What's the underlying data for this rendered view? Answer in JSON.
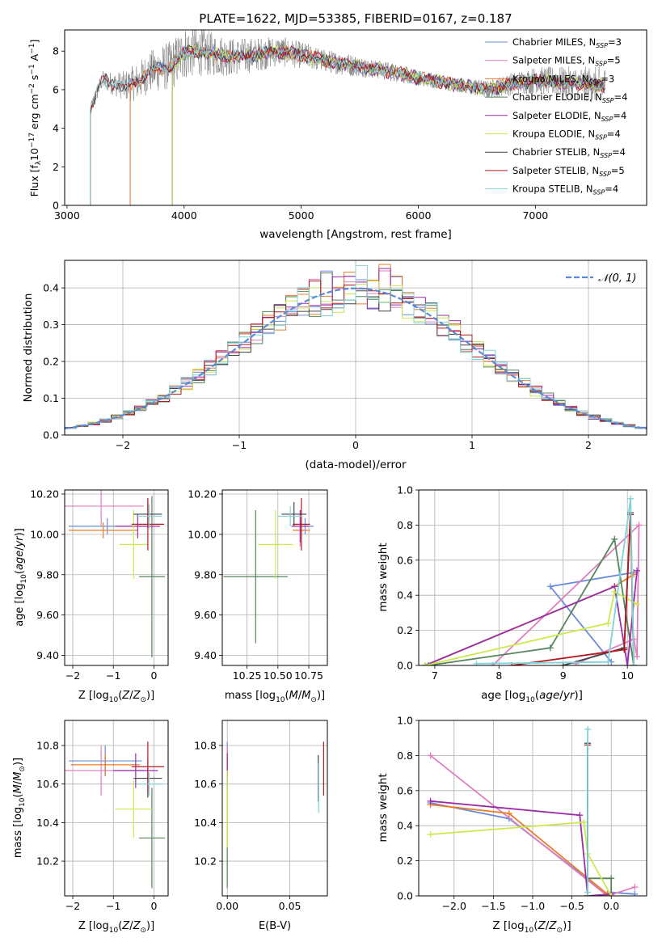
{
  "figure": {
    "title": "PLATE=1622, MJD=53385, FIBERID=0167, z=0.187",
    "colors": {
      "chabrier_miles": "#6a8bd9",
      "salpeter_miles": "#e07fbf",
      "kroupa_miles": "#e97d2c",
      "chabrier_elodie": "#55855a",
      "salpeter_elodie": "#9b2fa8",
      "kroupa_elodie": "#cce84f",
      "chabrier_stelib": "#444444",
      "salpeter_stelib": "#b3181f",
      "kroupa_stelib": "#7fd3d9",
      "data_spectrum": "#7a7a7a",
      "gauss": "#5b8ad6"
    }
  },
  "chart_data": [
    {
      "id": "spectrum",
      "type": "line",
      "xlabel": "wavelength [Angstrom, rest frame]",
      "ylabel": "Flux [f_λ 10^-17 erg cm^-2 s^-1 A^-1]",
      "xlim": [
        2980,
        7950
      ],
      "ylim": [
        0,
        9.1
      ],
      "xticks": [
        3000,
        4000,
        5000,
        6000,
        7000
      ],
      "yticks": [
        0,
        2,
        4,
        6,
        8
      ],
      "grid": false,
      "legend_placement": "right",
      "legend": [
        {
          "key": "chabrier_miles",
          "name": "Chabrier MILES, N",
          "sub": "SSP",
          "tail": "=3"
        },
        {
          "key": "salpeter_miles",
          "name": "Salpeter MILES, N",
          "sub": "SSP",
          "tail": "=5"
        },
        {
          "key": "kroupa_miles",
          "name": "Kroupa MILES, N",
          "sub": "SSP",
          "tail": "=3"
        },
        {
          "key": "chabrier_elodie",
          "name": "Chabrier ELODIE, N",
          "sub": "SSP",
          "tail": "=4"
        },
        {
          "key": "salpeter_elodie",
          "name": "Salpeter ELODIE, N",
          "sub": "SSP",
          "tail": "=4"
        },
        {
          "key": "kroupa_elodie",
          "name": "Kroupa ELODIE, N",
          "sub": "SSP",
          "tail": "=4"
        },
        {
          "key": "chabrier_stelib",
          "name": "Chabrier STELIB, N",
          "sub": "SSP",
          "tail": "=4"
        },
        {
          "key": "salpeter_stelib",
          "name": "Salpeter STELIB, N",
          "sub": "SSP",
          "tail": "=5"
        },
        {
          "key": "kroupa_stelib",
          "name": "Kroupa STELIB, N",
          "sub": "SSP",
          "tail": "=4"
        }
      ],
      "data_envelope": {
        "x": [
          3200,
          3300,
          3400,
          3500,
          3600,
          3700,
          3800,
          3900,
          4000,
          4100,
          4200,
          4400,
          4600,
          4800,
          5000,
          5200,
          5400,
          5600,
          5800,
          6000,
          6200,
          6400,
          6600,
          6800,
          7000,
          7200,
          7400,
          7600
        ],
        "y": [
          5.0,
          6.5,
          6.3,
          6.2,
          6.4,
          6.9,
          7.1,
          7.3,
          7.9,
          8.0,
          7.9,
          7.7,
          7.8,
          8.0,
          7.8,
          7.5,
          7.3,
          7.1,
          6.9,
          6.6,
          6.4,
          6.2,
          6.0,
          6.3,
          6.5,
          6.4,
          6.3,
          6.2
        ],
        "noise": [
          0.3,
          0.5,
          0.6,
          0.8,
          1.0,
          1.1,
          1.2,
          1.3,
          1.4,
          1.3,
          1.2,
          1.0,
          0.9,
          0.8,
          0.7,
          0.6,
          0.6,
          0.5,
          0.5,
          0.4,
          0.4,
          0.4,
          0.5,
          0.6,
          0.7,
          0.8,
          0.9,
          1.0
        ]
      },
      "model_start": {
        "chabrier_miles": 3540,
        "salpeter_miles": 3540,
        "kroupa_miles": 3540,
        "chabrier_elodie": 3900,
        "salpeter_elodie": 3900,
        "kroupa_elodie": 3900,
        "chabrier_stelib": 3200,
        "salpeter_stelib": 3200,
        "kroupa_stelib": 3200
      }
    },
    {
      "id": "residuals",
      "type": "histogram",
      "xlabel": "(data-model)/error",
      "ylabel": "Normed distribution",
      "xlim": [
        -2.5,
        2.5
      ],
      "ylim": [
        0,
        0.475
      ],
      "xticks": [
        -2,
        -1,
        0,
        1,
        2
      ],
      "xtick_labels": [
        "−2",
        "−1",
        "0",
        "1",
        "2"
      ],
      "yticks": [
        0.0,
        0.1,
        0.2,
        0.3,
        0.4
      ],
      "grid": true,
      "legend": "𝒩(0, 1)",
      "legend_placement": "top-right",
      "bin_width": 0.1
    },
    {
      "id": "age_vs_z",
      "type": "errorbar",
      "xlabel": "Z [log10(Z/Z⊙)]",
      "ylabel": "age  [log10(age/yr)]",
      "xlim": [
        -2.2,
        0.35
      ],
      "ylim": [
        9.35,
        10.22
      ],
      "xticks": [
        -2,
        -1,
        0
      ],
      "xtick_labels": [
        "−2",
        "−1",
        "0"
      ],
      "yticks": [
        9.4,
        9.6,
        9.8,
        10.0,
        10.2
      ],
      "grid": true,
      "points": [
        {
          "key": "chabrier_miles",
          "x": -1.15,
          "y": 10.04,
          "xerr": 0.95,
          "yerr": 0.04
        },
        {
          "key": "salpeter_miles",
          "x": -1.3,
          "y": 10.14,
          "xerr": 1.05,
          "yerr": 0.1
        },
        {
          "key": "kroupa_miles",
          "x": -1.25,
          "y": 10.02,
          "xerr": 0.85,
          "yerr": 0.04
        },
        {
          "key": "chabrier_elodie",
          "x": -0.05,
          "y": 9.79,
          "xerr": 0.32,
          "yerr": 0.4
        },
        {
          "key": "salpeter_elodie",
          "x": -0.4,
          "y": 10.04,
          "xerr": 0.55,
          "yerr": 0.06
        },
        {
          "key": "kroupa_elodie",
          "x": -0.5,
          "y": 9.95,
          "xerr": 0.35,
          "yerr": 0.17
        },
        {
          "key": "chabrier_stelib",
          "x": -0.15,
          "y": 10.1,
          "xerr": 0.35,
          "yerr": 0.07
        },
        {
          "key": "salpeter_stelib",
          "x": -0.15,
          "y": 10.05,
          "xerr": 0.4,
          "yerr": 0.13
        },
        {
          "key": "kroupa_stelib",
          "x": -0.12,
          "y": 10.09,
          "xerr": 0.32,
          "yerr": 0.06
        }
      ]
    },
    {
      "id": "age_vs_mass",
      "type": "errorbar",
      "xlabel": "mass [log10(M/M⊙)]",
      "ylabel": "",
      "xlim": [
        10.05,
        10.9
      ],
      "ylim": [
        9.35,
        10.22
      ],
      "xticks": [
        10.25,
        10.5,
        10.75
      ],
      "xtick_labels": [
        "10.25",
        "10.50",
        "10.75"
      ],
      "yticks": [
        9.4,
        9.6,
        9.8,
        10.0,
        10.2
      ],
      "grid": true,
      "points": [
        {
          "key": "chabrier_miles",
          "x": 10.72,
          "y": 10.04,
          "xerr": 0.07,
          "yerr": 0.04
        },
        {
          "key": "salpeter_miles",
          "x": 10.68,
          "y": 10.02,
          "xerr": 0.05,
          "yerr": 0.08
        },
        {
          "key": "kroupa_miles",
          "x": 10.69,
          "y": 10.02,
          "xerr": 0.07,
          "yerr": 0.05
        },
        {
          "key": "chabrier_elodie",
          "x": 10.32,
          "y": 9.79,
          "xerr": 0.26,
          "yerr": 0.33
        },
        {
          "key": "salpeter_elodie",
          "x": 10.68,
          "y": 10.04,
          "xerr": 0.07,
          "yerr": 0.08
        },
        {
          "key": "kroupa_elodie",
          "x": 10.48,
          "y": 9.95,
          "xerr": 0.14,
          "yerr": 0.17
        },
        {
          "key": "chabrier_stelib",
          "x": 10.63,
          "y": 10.1,
          "xerr": 0.1,
          "yerr": 0.06
        },
        {
          "key": "salpeter_stelib",
          "x": 10.69,
          "y": 10.05,
          "xerr": 0.07,
          "yerr": 0.13
        },
        {
          "key": "kroupa_stelib",
          "x": 10.6,
          "y": 10.09,
          "xerr": 0.1,
          "yerr": 0.05
        }
      ]
    },
    {
      "id": "weight_vs_age",
      "type": "line",
      "xlabel": "age  [log10(age/yr)]",
      "ylabel": "mass weight",
      "xlim": [
        6.75,
        10.3
      ],
      "ylim": [
        0,
        1
      ],
      "xticks": [
        7,
        8,
        9,
        10
      ],
      "yticks": [
        0.0,
        0.2,
        0.4,
        0.6,
        0.8,
        1.0
      ],
      "grid": true,
      "series": [
        {
          "key": "chabrier_miles",
          "x": [
            9.75,
            8.8,
            10.1
          ],
          "y": [
            0.02,
            0.45,
            0.53
          ]
        },
        {
          "key": "salpeter_miles",
          "x": [
            9.2,
            10.1,
            10.15,
            10.18,
            7.9
          ],
          "y": [
            0.01,
            0.15,
            0.05,
            0.8,
            0.0
          ]
        },
        {
          "key": "kroupa_miles",
          "x": [
            6.85,
            9.8,
            10.1
          ],
          "y": [
            0.0,
            0.45,
            0.52
          ]
        },
        {
          "key": "chabrier_elodie",
          "x": [
            6.9,
            8.8,
            9.8,
            10.1
          ],
          "y": [
            0.0,
            0.1,
            0.72,
            0.0
          ]
        },
        {
          "key": "salpeter_elodie",
          "x": [
            6.85,
            9.8,
            10.0,
            10.15
          ],
          "y": [
            0.0,
            0.45,
            0.0,
            0.54
          ]
        },
        {
          "key": "kroupa_elodie",
          "x": [
            6.85,
            9.7,
            9.8,
            10.15
          ],
          "y": [
            0.0,
            0.24,
            0.42,
            0.35
          ]
        },
        {
          "key": "chabrier_stelib",
          "x": [
            9.0,
            9.95,
            10.05,
            10.1
          ],
          "y": [
            0.0,
            0.1,
            0.87,
            0.0
          ]
        },
        {
          "key": "salpeter_stelib",
          "x": [
            8.2,
            9.95,
            10.05,
            10.1
          ],
          "y": [
            0.0,
            0.09,
            0.86,
            0.0
          ]
        },
        {
          "key": "kroupa_stelib",
          "x": [
            7.65,
            9.7,
            10.05,
            10.1
          ],
          "y": [
            0.01,
            0.02,
            0.95,
            0.0
          ]
        }
      ]
    },
    {
      "id": "mass_vs_z",
      "type": "errorbar",
      "xlabel": "Z [log10(Z/Z⊙)]",
      "ylabel": "mass [log10(M/M⊙)]",
      "xlim": [
        -2.2,
        0.35
      ],
      "ylim": [
        10.02,
        10.93
      ],
      "xticks": [
        -2,
        -1,
        0
      ],
      "xtick_labels": [
        "−2",
        "−1",
        "0"
      ],
      "yticks": [
        10.2,
        10.4,
        10.6,
        10.8
      ],
      "grid": true,
      "points": [
        {
          "key": "chabrier_miles",
          "x": -1.2,
          "y": 10.72,
          "xerr": 0.9,
          "yerr": 0.08
        },
        {
          "key": "salpeter_miles",
          "x": -1.3,
          "y": 10.67,
          "xerr": 1.05,
          "yerr": 0.13
        },
        {
          "key": "kroupa_miles",
          "x": -1.2,
          "y": 10.7,
          "xerr": 0.85,
          "yerr": 0.06
        },
        {
          "key": "chabrier_elodie",
          "x": -0.05,
          "y": 10.32,
          "xerr": 0.32,
          "yerr": 0.26
        },
        {
          "key": "salpeter_elodie",
          "x": -0.45,
          "y": 10.67,
          "xerr": 0.55,
          "yerr": 0.09
        },
        {
          "key": "kroupa_elodie",
          "x": -0.5,
          "y": 10.47,
          "xerr": 0.45,
          "yerr": 0.15
        },
        {
          "key": "chabrier_stelib",
          "x": -0.15,
          "y": 10.63,
          "xerr": 0.35,
          "yerr": 0.1
        },
        {
          "key": "salpeter_stelib",
          "x": -0.15,
          "y": 10.69,
          "xerr": 0.4,
          "yerr": 0.13
        },
        {
          "key": "kroupa_stelib",
          "x": -0.12,
          "y": 10.6,
          "xerr": 0.32,
          "yerr": 0.06
        }
      ]
    },
    {
      "id": "mass_vs_ebv",
      "type": "errorbar",
      "xlabel": "E(B-V)",
      "ylabel": "",
      "xlim": [
        -0.004,
        0.08
      ],
      "ylim": [
        10.02,
        10.93
      ],
      "xticks": [
        0.0,
        0.05
      ],
      "xtick_labels": [
        "0.00",
        "0.05"
      ],
      "yticks": [
        10.2,
        10.4,
        10.6,
        10.8
      ],
      "grid": true,
      "points": [
        {
          "key": "chabrier_miles",
          "x": 0.0,
          "y": 10.72,
          "xerr": 0.0,
          "yerr": 0.1
        },
        {
          "key": "salpeter_miles",
          "x": 0.0,
          "y": 10.68,
          "xerr": 0.0,
          "yerr": 0.12
        },
        {
          "key": "kroupa_miles",
          "x": 0.0,
          "y": 10.7,
          "xerr": 0.0,
          "yerr": 0.06
        },
        {
          "key": "chabrier_elodie",
          "x": 0.0,
          "y": 10.32,
          "xerr": 0.0,
          "yerr": 0.26
        },
        {
          "key": "salpeter_elodie",
          "x": 0.0,
          "y": 10.67,
          "xerr": 0.0,
          "yerr": 0.09
        },
        {
          "key": "kroupa_elodie",
          "x": 0.0,
          "y": 10.47,
          "xerr": 0.0,
          "yerr": 0.2
        },
        {
          "key": "chabrier_stelib",
          "x": 0.0727,
          "y": 10.63,
          "xerr": 0.0,
          "yerr": 0.12
        },
        {
          "key": "salpeter_stelib",
          "x": 0.077,
          "y": 10.68,
          "xerr": 0.0,
          "yerr": 0.14
        },
        {
          "key": "kroupa_stelib",
          "x": 0.073,
          "y": 10.58,
          "xerr": 0.0,
          "yerr": 0.13
        }
      ]
    },
    {
      "id": "weight_vs_z",
      "type": "line",
      "xlabel": "Z [log10(Z/Z⊙)]",
      "ylabel": "mass weight",
      "xlim": [
        -2.45,
        0.45
      ],
      "ylim": [
        0,
        1
      ],
      "xticks": [
        -2.0,
        -1.5,
        -1.0,
        -0.5,
        0.0
      ],
      "xtick_labels": [
        "−2.0",
        "−1.5",
        "−1.0",
        "−0.5",
        "0.0"
      ],
      "yticks": [
        0.0,
        0.2,
        0.4,
        0.6,
        0.8,
        1.0
      ],
      "grid": true,
      "series": [
        {
          "key": "chabrier_miles",
          "x": [
            -2.3,
            -1.3,
            -0.05,
            0.0,
            0.3
          ],
          "y": [
            0.53,
            0.44,
            0.01,
            0.02,
            0.01
          ]
        },
        {
          "key": "salpeter_miles",
          "x": [
            -2.3,
            -0.05,
            0.3
          ],
          "y": [
            0.8,
            0.0,
            0.05
          ]
        },
        {
          "key": "kroupa_miles",
          "x": [
            -2.3,
            -1.3,
            -0.05,
            0.0
          ],
          "y": [
            0.52,
            0.47,
            0.01,
            0.0
          ]
        },
        {
          "key": "chabrier_elodie",
          "x": [
            -0.3,
            -0.3,
            0.0,
            0.0
          ],
          "y": [
            0.0,
            0.1,
            0.1,
            0.0
          ]
        },
        {
          "key": "salpeter_elodie",
          "x": [
            -2.3,
            -0.4,
            -0.3,
            0.0
          ],
          "y": [
            0.54,
            0.46,
            0.0,
            0.01
          ]
        },
        {
          "key": "kroupa_elodie",
          "x": [
            -2.3,
            -0.35,
            -0.3,
            0.0
          ],
          "y": [
            0.35,
            0.42,
            0.24,
            0.0
          ]
        },
        {
          "key": "chabrier_stelib",
          "x": [
            -0.3,
            -0.3,
            -0.3
          ],
          "y": [
            0.0,
            0.87,
            0.0
          ]
        },
        {
          "key": "salpeter_stelib",
          "x": [
            -0.3,
            -0.3,
            -0.3
          ],
          "y": [
            0.0,
            0.86,
            0.0
          ]
        },
        {
          "key": "kroupa_stelib",
          "x": [
            -0.3,
            -0.3,
            -0.3
          ],
          "y": [
            0.02,
            0.95,
            0.0
          ]
        }
      ]
    }
  ]
}
